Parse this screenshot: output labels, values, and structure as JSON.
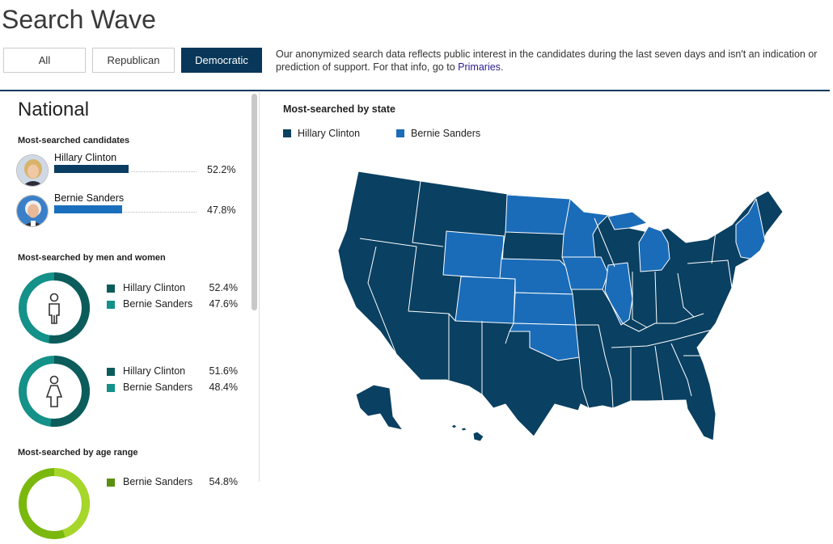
{
  "header": {
    "title": "Search Wave"
  },
  "tabs": [
    {
      "label": "All"
    },
    {
      "label": "Republican"
    },
    {
      "label": "Democratic"
    }
  ],
  "notice": {
    "text": "Our anonymized search data reflects public interest in the candidates during the last seven days and isn't an indication or prediction of support. For that info, go to",
    "link": "Primaries",
    "end": "."
  },
  "national": {
    "title": "National",
    "candidates_heading": "Most-searched candidates",
    "candidates": [
      {
        "name": "Hillary Clinton",
        "pct": "52.2%",
        "value": 52.2,
        "color": "#0a3d62"
      },
      {
        "name": "Bernie Sanders",
        "pct": "47.8%",
        "value": 47.8,
        "color": "#1a6fbd"
      }
    ],
    "gender_heading": "Most-searched by men and women",
    "men": [
      {
        "name": "Hillary Clinton",
        "pct": "52.4%",
        "value": 52.4,
        "color": "#0b5c5a"
      },
      {
        "name": "Bernie Sanders",
        "pct": "47.6%",
        "value": 47.6,
        "color": "#149188"
      }
    ],
    "women": [
      {
        "name": "Hillary Clinton",
        "pct": "51.6%",
        "value": 51.6,
        "color": "#0b5c5a"
      },
      {
        "name": "Bernie Sanders",
        "pct": "48.4%",
        "value": 48.4,
        "color": "#149188"
      }
    ],
    "age_heading": "Most-searched by age range",
    "age_partial": {
      "name": "Bernie Sanders",
      "pct": "54.8%"
    }
  },
  "map": {
    "title": "Most-searched by state",
    "legend": [
      {
        "name": "Hillary Clinton",
        "color": "#0a4062"
      },
      {
        "name": "Bernie Sanders",
        "color": "#1a6cb8"
      }
    ]
  }
}
